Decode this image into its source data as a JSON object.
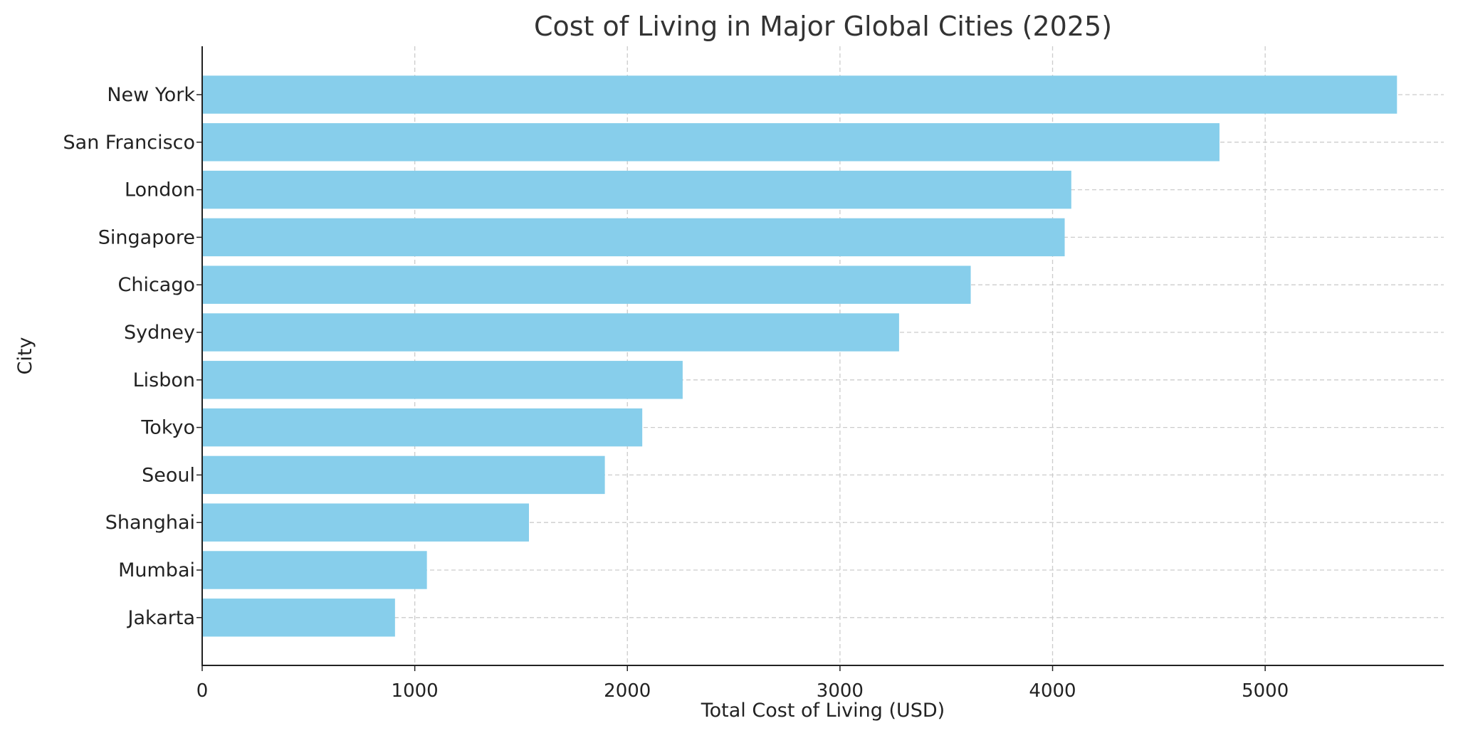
{
  "chart_data": {
    "type": "bar",
    "orientation": "horizontal",
    "title": "Cost of Living in Major Global Cities (2025)",
    "xlabel": "Total Cost of Living (USD)",
    "ylabel": "City",
    "categories": [
      "New York",
      "San Francisco",
      "London",
      "Singapore",
      "Chicago",
      "Sydney",
      "Lisbon",
      "Tokyo",
      "Seoul",
      "Shanghai",
      "Mumbai",
      "Jakarta"
    ],
    "values": [
      5620,
      4785,
      4088,
      4057,
      3615,
      3278,
      2260,
      2070,
      1894,
      1537,
      1057,
      907
    ],
    "xlim": [
      0,
      5840
    ],
    "xticks": [
      0,
      1000,
      2000,
      3000,
      4000,
      5000
    ],
    "xtick_labels": [
      "0",
      "1000",
      "2000",
      "3000",
      "4000",
      "5000"
    ],
    "grid": true,
    "bar_color": "#87ceeb",
    "grid_color": "#cccccc"
  }
}
